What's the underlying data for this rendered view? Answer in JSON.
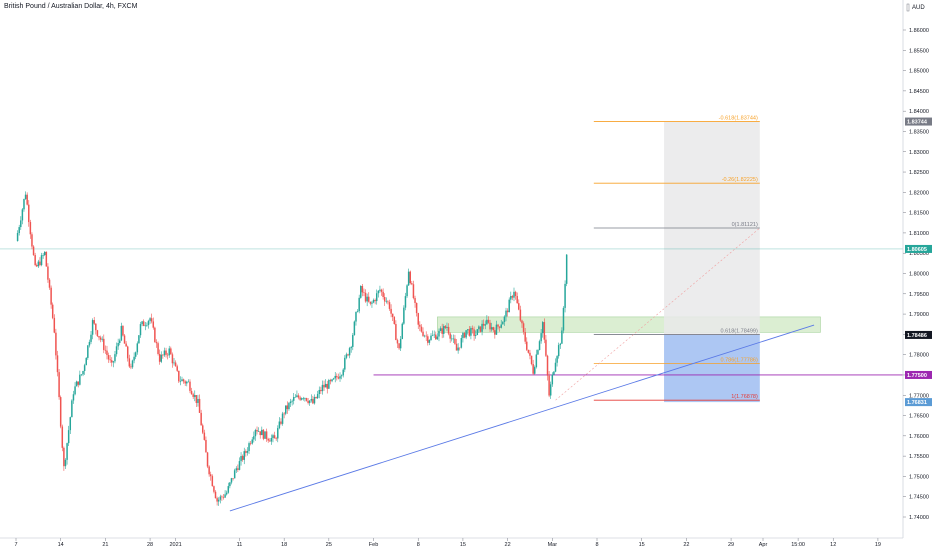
{
  "header": {
    "title": "British Pound / Australian Dollar, 4h, FXCM"
  },
  "chart_data": {
    "type": "candlestick",
    "title": "British Pound / Australian Dollar, 4h, FXCM",
    "currency": "AUD",
    "ylim": [
      1.7375,
      1.8625
    ],
    "yticks": [
      "1.74000",
      "1.74500",
      "1.75000",
      "1.75500",
      "1.76000",
      "1.76500",
      "1.77000",
      "1.77500",
      "1.78000",
      "1.78500",
      "1.79000",
      "1.79500",
      "1.80000",
      "1.80500",
      "1.81000",
      "1.81500",
      "1.82000",
      "1.82500",
      "1.83000",
      "1.83500",
      "1.84000",
      "1.84500",
      "1.85000",
      "1.85500",
      "1.86000"
    ],
    "xticks": [
      {
        "label": "7",
        "x": 0.0
      },
      {
        "label": "14",
        "x": 7.0
      },
      {
        "label": "21",
        "x": 14.0
      },
      {
        "label": "28",
        "x": 21.0
      },
      {
        "label": "2021",
        "x": 25.0
      },
      {
        "label": "11",
        "x": 35.0
      },
      {
        "label": "18",
        "x": 42.0
      },
      {
        "label": "25",
        "x": 49.0
      },
      {
        "label": "Feb",
        "x": 56.0
      },
      {
        "label": "8",
        "x": 63.0
      },
      {
        "label": "15",
        "x": 70.0
      },
      {
        "label": "22",
        "x": 77.0
      },
      {
        "label": "Mar",
        "x": 84.0
      },
      {
        "label": "8",
        "x": 91.0
      },
      {
        "label": "15",
        "x": 98.0
      },
      {
        "label": "22",
        "x": 105.0
      },
      {
        "label": "29",
        "x": 112.0
      },
      {
        "label": "Apr",
        "x": 117.0
      },
      {
        "label": "15:00",
        "x": 122.5
      },
      {
        "label": "12",
        "x": 128.0
      },
      {
        "label": "19",
        "x": 135.0
      }
    ],
    "price_path": [
      {
        "x": 0.0,
        "y": 1.808
      },
      {
        "x": 1.5,
        "y": 1.82
      },
      {
        "x": 3.0,
        "y": 1.801
      },
      {
        "x": 4.5,
        "y": 1.805
      },
      {
        "x": 6.0,
        "y": 1.786
      },
      {
        "x": 7.5,
        "y": 1.752
      },
      {
        "x": 9.0,
        "y": 1.771
      },
      {
        "x": 10.5,
        "y": 1.776
      },
      {
        "x": 12.0,
        "y": 1.788
      },
      {
        "x": 13.5,
        "y": 1.783
      },
      {
        "x": 15.0,
        "y": 1.777
      },
      {
        "x": 16.5,
        "y": 1.786
      },
      {
        "x": 18.0,
        "y": 1.776
      },
      {
        "x": 19.5,
        "y": 1.787
      },
      {
        "x": 21.0,
        "y": 1.789
      },
      {
        "x": 22.5,
        "y": 1.779
      },
      {
        "x": 24.0,
        "y": 1.781
      },
      {
        "x": 25.5,
        "y": 1.774
      },
      {
        "x": 27.0,
        "y": 1.773
      },
      {
        "x": 28.5,
        "y": 1.768
      },
      {
        "x": 30.0,
        "y": 1.753
      },
      {
        "x": 31.5,
        "y": 1.744
      },
      {
        "x": 33.0,
        "y": 1.746
      },
      {
        "x": 34.5,
        "y": 1.752
      },
      {
        "x": 36.0,
        "y": 1.756
      },
      {
        "x": 37.5,
        "y": 1.762
      },
      {
        "x": 39.0,
        "y": 1.76
      },
      {
        "x": 40.5,
        "y": 1.759
      },
      {
        "x": 42.0,
        "y": 1.766
      },
      {
        "x": 43.5,
        "y": 1.769
      },
      {
        "x": 45.0,
        "y": 1.77
      },
      {
        "x": 46.5,
        "y": 1.768
      },
      {
        "x": 48.0,
        "y": 1.772
      },
      {
        "x": 49.5,
        "y": 1.773
      },
      {
        "x": 51.0,
        "y": 1.776
      },
      {
        "x": 52.5,
        "y": 1.783
      },
      {
        "x": 54.0,
        "y": 1.796
      },
      {
        "x": 55.5,
        "y": 1.792
      },
      {
        "x": 57.0,
        "y": 1.796
      },
      {
        "x": 58.5,
        "y": 1.792
      },
      {
        "x": 60.0,
        "y": 1.781
      },
      {
        "x": 61.5,
        "y": 1.801
      },
      {
        "x": 63.0,
        "y": 1.787
      },
      {
        "x": 64.5,
        "y": 1.784
      },
      {
        "x": 66.0,
        "y": 1.785
      },
      {
        "x": 67.5,
        "y": 1.787
      },
      {
        "x": 69.0,
        "y": 1.781
      },
      {
        "x": 70.5,
        "y": 1.786
      },
      {
        "x": 72.0,
        "y": 1.785
      },
      {
        "x": 73.5,
        "y": 1.788
      },
      {
        "x": 75.0,
        "y": 1.786
      },
      {
        "x": 76.5,
        "y": 1.789
      },
      {
        "x": 78.0,
        "y": 1.796
      },
      {
        "x": 79.5,
        "y": 1.785
      },
      {
        "x": 81.0,
        "y": 1.776
      },
      {
        "x": 82.5,
        "y": 1.788
      },
      {
        "x": 83.5,
        "y": 1.77
      },
      {
        "x": 84.5,
        "y": 1.779
      },
      {
        "x": 85.5,
        "y": 1.785
      },
      {
        "x": 86.3,
        "y": 1.806
      }
    ],
    "current_price": "1.80605",
    "price_labels": [
      {
        "text": "1.83744",
        "value": 1.83744,
        "color": "#787b86"
      },
      {
        "text": "1.80605",
        "value": 1.80605,
        "color": "#26a69a"
      },
      {
        "text": "1.78486",
        "value": 1.78486,
        "color": "#131722"
      },
      {
        "text": "1.77500",
        "value": 1.775,
        "color": "#9c27b0"
      },
      {
        "text": "1.76831",
        "value": 1.76831,
        "color": "#5b9bd5"
      }
    ],
    "fib_levels": [
      {
        "label": "-0.618(1.83744)",
        "value": 1.83744,
        "color": "#f7a128"
      },
      {
        "label": "-0.26(1.82225)",
        "value": 1.82225,
        "color": "#f7a128"
      },
      {
        "label": "0(1.81121)",
        "value": 1.81121,
        "color": "#787b86"
      },
      {
        "label": "0.618(1.78499)",
        "value": 1.78499,
        "color": "#787b86"
      },
      {
        "label": "0.786(1.77786)",
        "value": 1.77786,
        "color": "#f7a128"
      },
      {
        "label": "1(1.76878)",
        "value": 1.76878,
        "color": "#e53935"
      }
    ],
    "fib_x": [
      90.5,
      116.5
    ],
    "zone": {
      "x": [
        66.0,
        126.0
      ],
      "y": [
        1.7855,
        1.7893
      ],
      "color": "#cfe8c3"
    },
    "short_position": {
      "x": [
        101.5,
        116.5
      ],
      "target_y": [
        1.76831,
        1.78486
      ],
      "stop_y": [
        1.78486,
        1.83744
      ]
    },
    "trendline": {
      "x": [
        33.5,
        125.0
      ],
      "y": [
        1.7415,
        1.7873
      ],
      "color": "#5b7ae6"
    },
    "horizontal_line": {
      "value": 1.775,
      "x_start": 56.0,
      "color": "#9c27b0"
    },
    "current_price_line_color": "#26a69a",
    "up_color": "#26a69a",
    "down_color": "#ef5350"
  }
}
